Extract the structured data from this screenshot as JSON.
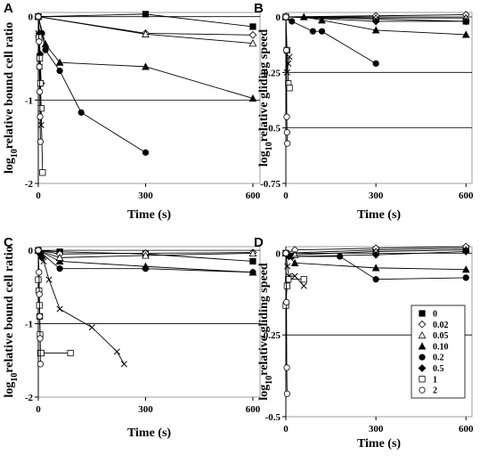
{
  "chart_data": [
    {
      "type": "scatter",
      "panel": "A",
      "ylabel_sub": "10",
      "ylabel_rest": "relative bound cell ratio",
      "ylabel_prefix": "log",
      "xlabel": "Time (s)",
      "xlim": [
        0,
        620
      ],
      "ylim": [
        -2,
        0.05
      ],
      "xticks": [
        0,
        300,
        600
      ],
      "yticks": [
        0,
        -1,
        -2
      ],
      "ytick_labels": [
        "0",
        "-1",
        "-2"
      ],
      "hlines": [
        0,
        -1
      ],
      "series": [
        {
          "name": "0",
          "marker": "square-filled",
          "x": [
            0,
            300,
            600
          ],
          "y": [
            0,
            0.03,
            -0.12
          ]
        },
        {
          "name": "0.02",
          "marker": "diamond-open",
          "x": [
            0,
            300,
            600
          ],
          "y": [
            0,
            -0.2,
            -0.22
          ]
        },
        {
          "name": "0.05",
          "marker": "triangle-open",
          "x": [
            0,
            300,
            600
          ],
          "y": [
            0,
            -0.21,
            -0.32
          ]
        },
        {
          "name": "0.10",
          "marker": "triangle-filled",
          "x": [
            0,
            20,
            60,
            300,
            600
          ],
          "y": [
            0,
            -0.33,
            -0.55,
            -0.6,
            -0.98
          ]
        },
        {
          "name": "0.2",
          "marker": "circle-filled",
          "x": [
            0,
            10,
            20,
            60,
            120,
            300
          ],
          "y": [
            0,
            -0.2,
            -0.4,
            -0.65,
            -1.15,
            -1.63
          ]
        },
        {
          "name": "0.5",
          "marker": "diamond-filled",
          "x": [
            0,
            3,
            5,
            8
          ],
          "y": [
            0,
            -0.2,
            -0.45,
            -0.8
          ]
        },
        {
          "name": "1",
          "marker": "square-open",
          "x": [
            0,
            2,
            4,
            6,
            8,
            12
          ],
          "y": [
            0,
            -0.25,
            -0.5,
            -0.8,
            -1.1,
            -1.87
          ]
        },
        {
          "name": "2",
          "marker": "circle-open",
          "x": [
            0,
            2,
            3,
            4,
            5,
            6
          ],
          "y": [
            0,
            -0.3,
            -0.6,
            -0.9,
            -1.2,
            -1.5
          ]
        },
        {
          "name": "",
          "marker": "cross",
          "x": [
            0,
            4,
            8
          ],
          "y": [
            -0.2,
            -0.6,
            -1.3
          ]
        }
      ]
    },
    {
      "type": "scatter",
      "panel": "B",
      "ylabel_sub": "10",
      "ylabel_rest": "relative gliding speed",
      "ylabel_prefix": "log",
      "xlabel": "Time (s)",
      "xlim": [
        0,
        620
      ],
      "ylim": [
        -0.75,
        0.02
      ],
      "xticks": [
        0,
        300,
        600
      ],
      "yticks": [
        0,
        -0.25,
        -0.5,
        -0.75
      ],
      "ytick_labels": [
        "0",
        "-0.25",
        "-0.5",
        "-0.75"
      ],
      "hlines": [
        0,
        -0.25,
        -0.5
      ],
      "series": [
        {
          "name": "0",
          "marker": "square-filled",
          "x": [
            0,
            300,
            600
          ],
          "y": [
            0,
            -0.01,
            -0.02
          ]
        },
        {
          "name": "0.02",
          "marker": "diamond-open",
          "x": [
            0,
            300,
            600
          ],
          "y": [
            0,
            0.005,
            0.01
          ]
        },
        {
          "name": "0.05",
          "marker": "triangle-open",
          "x": [
            0,
            300,
            600
          ],
          "y": [
            0,
            -0.005,
            -0.005
          ]
        },
        {
          "name": "0.10",
          "marker": "triangle-filled",
          "x": [
            0,
            60,
            120,
            300,
            600
          ],
          "y": [
            0,
            0,
            -0.015,
            -0.06,
            -0.08
          ]
        },
        {
          "name": "0.2",
          "marker": "circle-filled",
          "x": [
            0,
            20,
            90,
            120,
            300
          ],
          "y": [
            0,
            -0.02,
            -0.065,
            -0.065,
            -0.21
          ]
        },
        {
          "name": "0.5",
          "marker": "diamond-filled",
          "x": [
            0,
            300,
            600
          ],
          "y": [
            0,
            -0.02,
            -0.02
          ]
        },
        {
          "name": "1",
          "marker": "square-open",
          "x": [
            0,
            4,
            8,
            12
          ],
          "y": [
            0,
            -0.15,
            -0.3,
            -0.32
          ]
        },
        {
          "name": "2",
          "marker": "circle-open",
          "x": [
            0,
            2,
            3,
            4,
            5
          ],
          "y": [
            0,
            -0.15,
            -0.45,
            -0.52,
            -0.57
          ]
        },
        {
          "name": "",
          "marker": "cross",
          "x": [
            0,
            4,
            8,
            12
          ],
          "y": [
            0,
            -0.25,
            -0.21,
            -0.18
          ]
        }
      ]
    },
    {
      "type": "scatter",
      "panel": "C",
      "ylabel_sub": "10",
      "ylabel_rest": "relative bound cell ratio",
      "ylabel_prefix": "log",
      "xlabel": "Time (s)",
      "xlim": [
        0,
        620
      ],
      "ylim": [
        -2,
        0.05
      ],
      "xticks": [
        0,
        300,
        600
      ],
      "yticks": [
        0,
        -1,
        -2
      ],
      "ytick_labels": [
        "0",
        "-1",
        "-2"
      ],
      "hlines": [
        0,
        -1
      ],
      "series": [
        {
          "name": "0",
          "marker": "square-filled",
          "x": [
            0,
            60,
            300,
            600
          ],
          "y": [
            0,
            -0.02,
            -0.05,
            -0.15
          ]
        },
        {
          "name": "0.02",
          "marker": "diamond-open",
          "x": [
            0,
            60,
            300,
            600
          ],
          "y": [
            0,
            -0.05,
            -0.04,
            -0.03
          ]
        },
        {
          "name": "0.05",
          "marker": "triangle-open",
          "x": [
            0,
            60,
            300,
            600
          ],
          "y": [
            0,
            -0.1,
            -0.07,
            -0.04
          ]
        },
        {
          "name": "0.10",
          "marker": "triangle-filled",
          "x": [
            0,
            60,
            300,
            600
          ],
          "y": [
            0,
            -0.15,
            -0.22,
            -0.3
          ]
        },
        {
          "name": "0.2",
          "marker": "circle-filled",
          "x": [
            0,
            60,
            300,
            600
          ],
          "y": [
            0,
            -0.25,
            -0.25,
            -0.3
          ]
        },
        {
          "name": "0.5",
          "marker": "diamond-filled",
          "x": [
            0,
            5,
            10
          ],
          "y": [
            0,
            -0.05,
            -0.1
          ]
        },
        {
          "name": "1",
          "marker": "square-open",
          "x": [
            0,
            2,
            3,
            4,
            5,
            6,
            8,
            90
          ],
          "y": [
            -0.4,
            -0.55,
            -0.75,
            -0.9,
            -1.15,
            -1.4,
            -1.4,
            -1.4
          ]
        },
        {
          "name": "2",
          "marker": "circle-open",
          "x": [
            0,
            2,
            3,
            4,
            5,
            6
          ],
          "y": [
            0,
            -0.3,
            -0.6,
            -0.9,
            -1.2,
            -1.55
          ]
        },
        {
          "name": "",
          "marker": "cross",
          "x": [
            0,
            15,
            30,
            60,
            150,
            220,
            240
          ],
          "y": [
            0,
            -0.15,
            -0.4,
            -0.8,
            -1.05,
            -1.38,
            -1.55
          ]
        }
      ]
    },
    {
      "type": "scatter",
      "panel": "D",
      "ylabel_sub": "10",
      "ylabel_rest": "relative gliding speed",
      "ylabel_prefix": "log",
      "xlabel": "Time (s)",
      "xlim": [
        0,
        620
      ],
      "ylim": [
        -0.5,
        0.02
      ],
      "xticks": [
        0,
        300,
        600
      ],
      "yticks": [
        0,
        -0.25,
        -0.5
      ],
      "ytick_labels": [
        "0",
        "-0.25",
        "-0.5"
      ],
      "hlines": [
        0,
        -0.25
      ],
      "series": [
        {
          "name": "0",
          "marker": "square-filled",
          "x": [
            0,
            300,
            600
          ],
          "y": [
            0,
            0.01,
            0.015
          ]
        },
        {
          "name": "0.02",
          "marker": "diamond-open",
          "x": [
            0,
            30,
            300,
            600
          ],
          "y": [
            0,
            0.01,
            0.015,
            0.02
          ]
        },
        {
          "name": "0.05",
          "marker": "triangle-open",
          "x": [
            0,
            30,
            300,
            600
          ],
          "y": [
            0,
            -0.005,
            0.005,
            0.01
          ]
        },
        {
          "name": "0.10",
          "marker": "triangle-filled",
          "x": [
            0,
            30,
            300,
            600
          ],
          "y": [
            0,
            -0.03,
            -0.045,
            -0.05
          ]
        },
        {
          "name": "0.2",
          "marker": "circle-filled",
          "x": [
            0,
            20,
            180,
            300,
            600
          ],
          "y": [
            0,
            -0.01,
            -0.01,
            -0.08,
            -0.075
          ]
        },
        {
          "name": "0.5",
          "marker": "diamond-filled",
          "x": [
            0,
            10,
            300,
            600
          ],
          "y": [
            0,
            -0.01,
            -0.005,
            0.005
          ]
        },
        {
          "name": "1",
          "marker": "square-open",
          "x": [
            0,
            4,
            8,
            60
          ],
          "y": [
            -0.16,
            -0.1,
            -0.08,
            -0.08
          ]
        },
        {
          "name": "2",
          "marker": "circle-open",
          "x": [
            0,
            2,
            3,
            4
          ],
          "y": [
            0,
            -0.15,
            -0.35,
            -0.43
          ]
        },
        {
          "name": "",
          "marker": "cross",
          "x": [
            0,
            5,
            10,
            30,
            60
          ],
          "y": [
            0,
            -0.04,
            -0.07,
            -0.07,
            -0.1
          ]
        }
      ]
    }
  ],
  "legend": {
    "panel": "D",
    "entries": [
      {
        "marker": "square-filled",
        "label": "0"
      },
      {
        "marker": "diamond-open",
        "label": "0.02"
      },
      {
        "marker": "triangle-open",
        "label": "0.05"
      },
      {
        "marker": "triangle-filled",
        "label": "0.10"
      },
      {
        "marker": "circle-filled",
        "label": "0.2"
      },
      {
        "marker": "diamond-filled",
        "label": "0.5"
      },
      {
        "marker": "square-open",
        "label": "1"
      },
      {
        "marker": "circle-open",
        "label": "2"
      }
    ]
  },
  "colors": {
    "ink": "#000000",
    "background": "#ffffff"
  }
}
